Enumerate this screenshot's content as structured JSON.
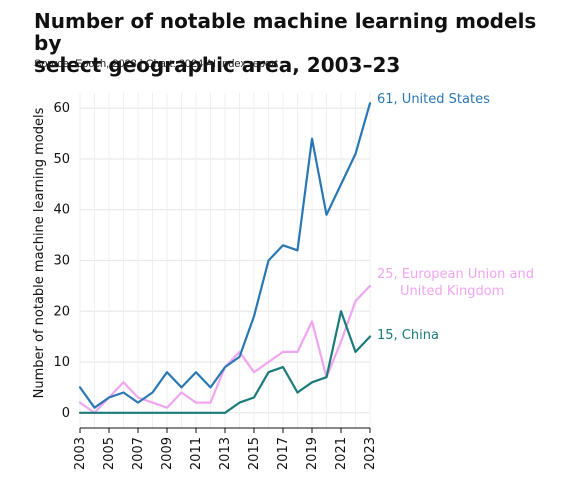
{
  "title_line1": "Number of notable machine learning models by",
  "title_line2": "select geographic area, 2003–23",
  "subtitle": "Source: Epoch, 2023 | Chart: 2024 AI Index report",
  "chart_data": {
    "type": "line",
    "x": [
      2003,
      2004,
      2005,
      2006,
      2007,
      2008,
      2009,
      2010,
      2011,
      2012,
      2013,
      2014,
      2015,
      2016,
      2017,
      2018,
      2019,
      2020,
      2021,
      2022,
      2023
    ],
    "xticks": [
      "2003",
      "2005",
      "2007",
      "2009",
      "2011",
      "2013",
      "2015",
      "2017",
      "2019",
      "2021",
      "2023"
    ],
    "yticks": [
      "0",
      "10",
      "20",
      "30",
      "40",
      "50",
      "60"
    ],
    "ylim": [
      -3,
      63
    ],
    "ylabel": "Number of notable machine learning models",
    "xlabel": "",
    "grid": true,
    "series": [
      {
        "name": "United States",
        "color": "#2a78b3",
        "label_lines": [
          "61, United States"
        ],
        "values": [
          5,
          1,
          3,
          4,
          2,
          4,
          8,
          5,
          8,
          5,
          9,
          11,
          19,
          30,
          33,
          32,
          54,
          39,
          45,
          51,
          61
        ]
      },
      {
        "name": "European Union and United Kingdom",
        "color": "#f0a5f0",
        "label_lines": [
          "25, European Union and",
          "United Kingdom"
        ],
        "values": [
          2,
          0,
          3,
          6,
          3,
          2,
          1,
          4,
          2,
          2,
          9,
          12,
          8,
          10,
          12,
          12,
          18,
          7,
          14,
          22,
          25
        ]
      },
      {
        "name": "China",
        "color": "#1b7a7a",
        "label_lines": [
          "15, China"
        ],
        "values": [
          0,
          0,
          0,
          0,
          0,
          0,
          0,
          0,
          0,
          0,
          0,
          2,
          3,
          8,
          9,
          4,
          6,
          7,
          20,
          12,
          15
        ]
      }
    ]
  }
}
